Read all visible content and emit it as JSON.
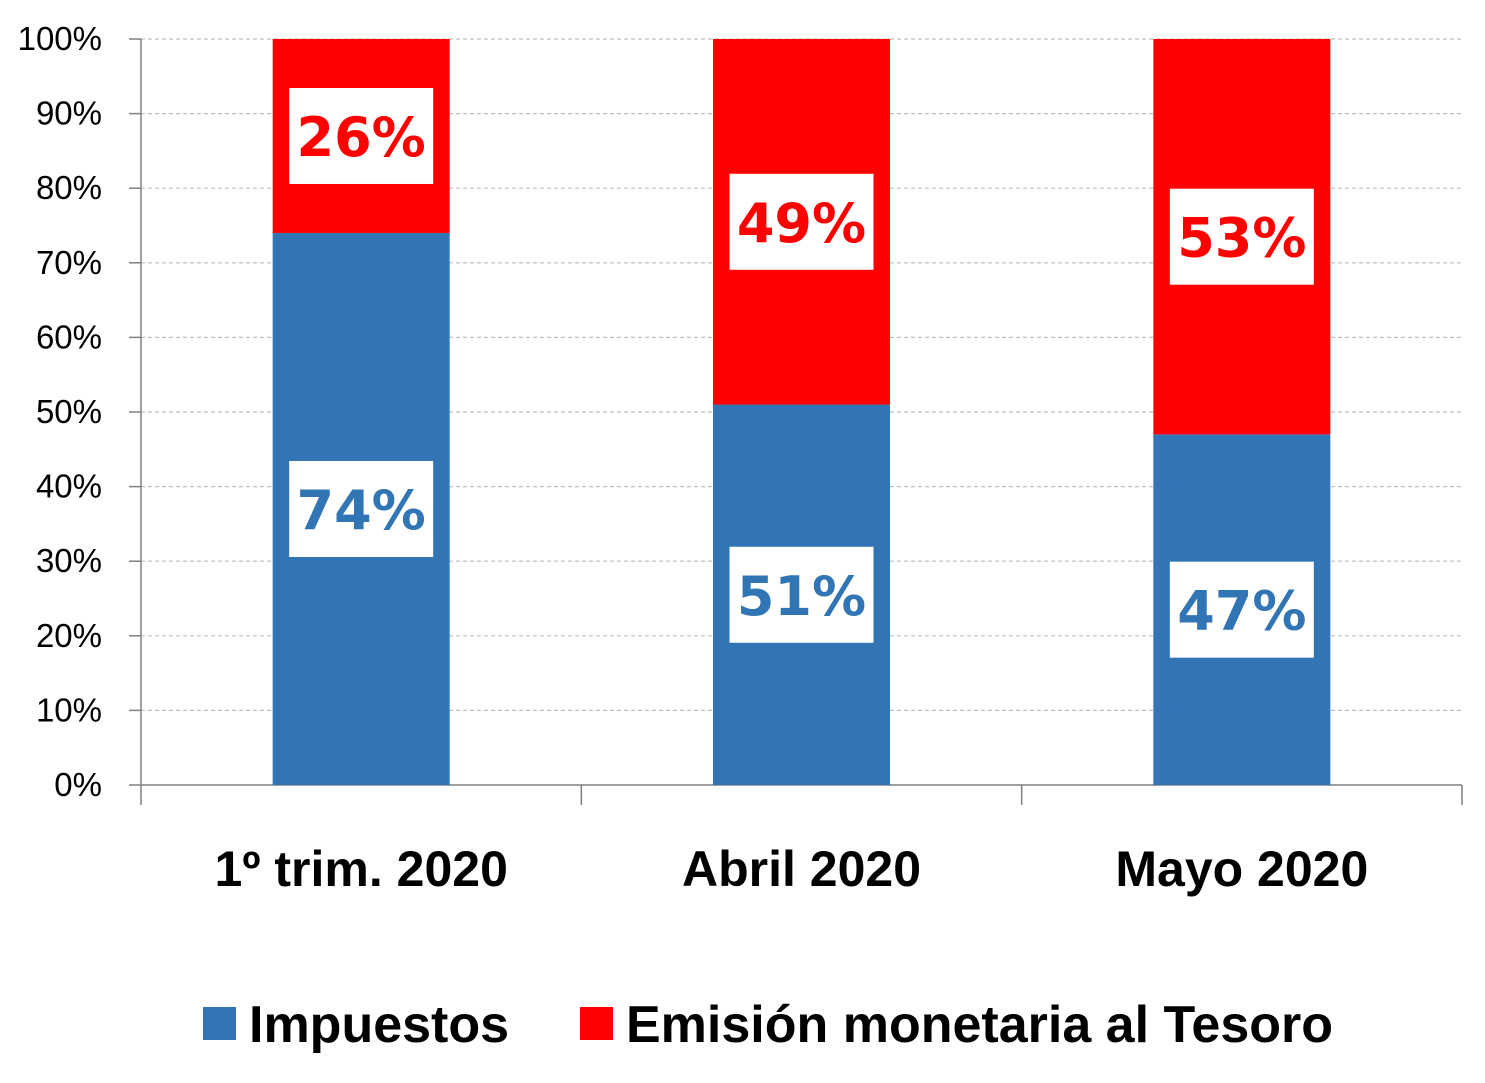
{
  "colors": {
    "impuestos": "#3275B4",
    "emision": "#FF0000",
    "gridline": "#BFBFBF",
    "axis": "#808080",
    "label_box": "#FFFFFF"
  },
  "chart_data": {
    "type": "bar",
    "stacked": true,
    "normalized": true,
    "categories": [
      "1º trim. 2020",
      "Abril 2020",
      "Mayo 2020"
    ],
    "series": [
      {
        "name": "Impuestos",
        "values": [
          74,
          51,
          47
        ],
        "labels": [
          "74%",
          "51%",
          "47%"
        ]
      },
      {
        "name": "Emisión monetaria al Tesoro",
        "values": [
          26,
          49,
          53
        ],
        "labels": [
          "26%",
          "49%",
          "53%"
        ]
      }
    ],
    "ylim": [
      0,
      100
    ],
    "yticks": [
      "0%",
      "10%",
      "20%",
      "30%",
      "40%",
      "50%",
      "60%",
      "70%",
      "80%",
      "90%",
      "100%"
    ],
    "grid": true,
    "legend": "bottom",
    "title": "",
    "xlabel": "",
    "ylabel": ""
  }
}
